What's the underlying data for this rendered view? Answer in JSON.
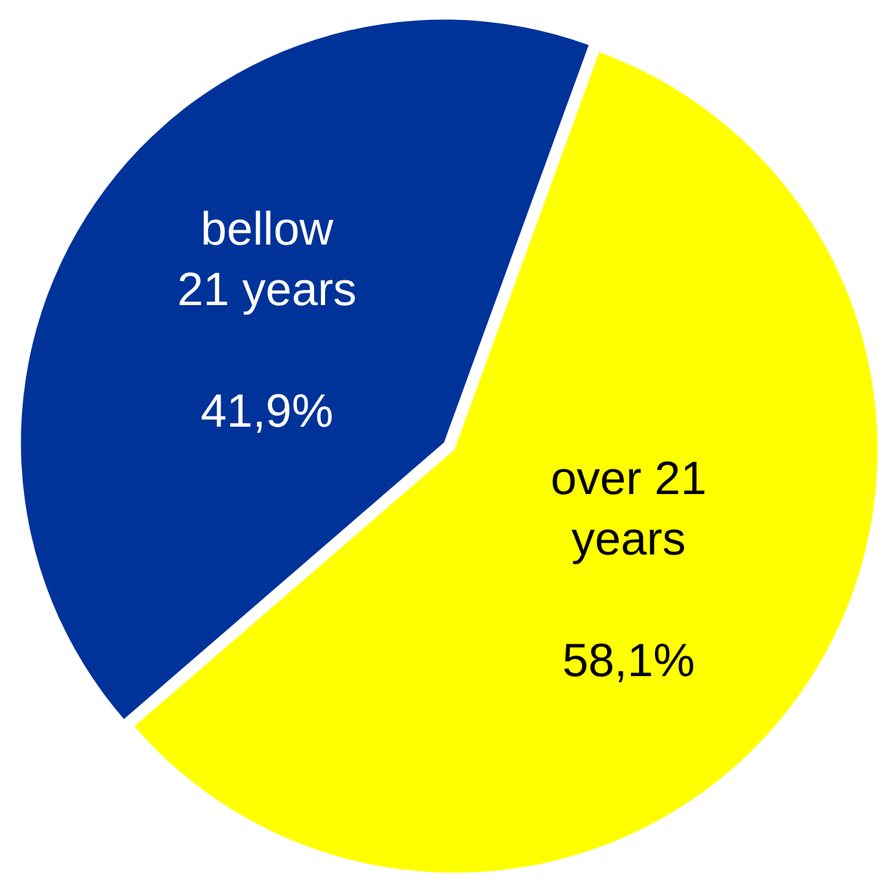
{
  "chart_data": {
    "type": "pie",
    "categories": [
      "over 21 years",
      "bellow 21 years"
    ],
    "values": [
      58.1,
      41.9
    ],
    "value_labels": [
      "58,1%",
      "41,9%"
    ],
    "colors": [
      "#ffff00",
      "#003399"
    ],
    "legend": false
  }
}
